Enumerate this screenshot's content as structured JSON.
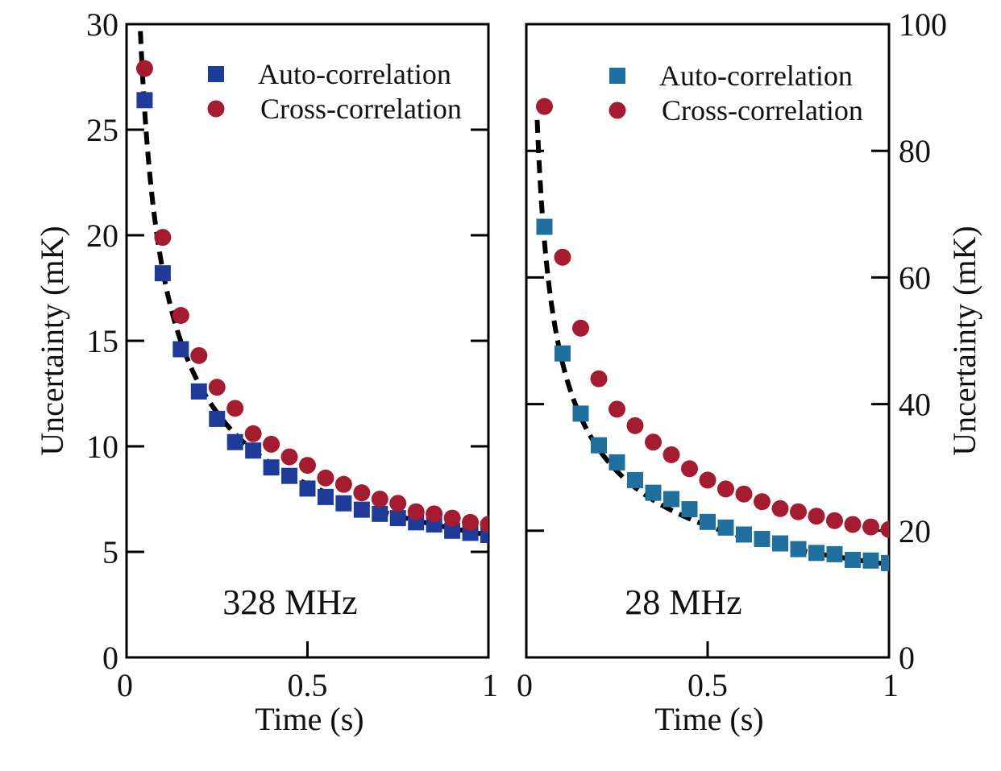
{
  "chart_data": [
    {
      "type": "scatter",
      "annotation": "328 MHz",
      "xlabel": "Time (s)",
      "ylabel": "Uncertainty (mK)",
      "xlim": [
        0,
        1
      ],
      "ylim": [
        0,
        30
      ],
      "x_ticks": [
        "0",
        "0.5",
        "1"
      ],
      "y_ticks": [
        "0",
        "5",
        "10",
        "15",
        "20",
        "25",
        "30"
      ],
      "legend_position": "top-right",
      "fit_curve": {
        "style": "dashed",
        "color": "#000000",
        "form": "a/sqrt(t)",
        "a": 5.8
      },
      "series": [
        {
          "name": "Auto-correlation",
          "marker": "square",
          "color": "#1f3b99",
          "x": [
            0.05,
            0.1,
            0.15,
            0.2,
            0.25,
            0.3,
            0.35,
            0.4,
            0.45,
            0.5,
            0.55,
            0.6,
            0.65,
            0.7,
            0.75,
            0.8,
            0.85,
            0.9,
            0.95,
            1.0
          ],
          "y": [
            26.4,
            18.2,
            14.6,
            12.6,
            11.3,
            10.2,
            9.8,
            9.0,
            8.6,
            8.0,
            7.6,
            7.3,
            7.0,
            6.8,
            6.6,
            6.4,
            6.3,
            6.0,
            5.9,
            5.8
          ]
        },
        {
          "name": "Cross-correlation",
          "marker": "circle",
          "color": "#a51c30",
          "x": [
            0.05,
            0.1,
            0.15,
            0.2,
            0.25,
            0.3,
            0.35,
            0.4,
            0.45,
            0.5,
            0.55,
            0.6,
            0.65,
            0.7,
            0.75,
            0.8,
            0.85,
            0.9,
            0.95,
            1.0
          ],
          "y": [
            27.9,
            19.9,
            16.2,
            14.3,
            12.8,
            11.8,
            10.6,
            10.1,
            9.5,
            9.1,
            8.5,
            8.2,
            7.8,
            7.5,
            7.3,
            6.9,
            6.8,
            6.6,
            6.4,
            6.3
          ]
        }
      ]
    },
    {
      "type": "scatter",
      "annotation": "28 MHz",
      "xlabel": "Time (s)",
      "ylabel": "Uncertainty (mK)",
      "xlim": [
        0,
        1
      ],
      "ylim": [
        0,
        100
      ],
      "x_ticks": [
        "0",
        "0.5",
        "1"
      ],
      "y_ticks": [
        "0",
        "20",
        "40",
        "60",
        "80",
        "100"
      ],
      "y_axis_side": "right",
      "legend_position": "top-right",
      "fit_curve": {
        "style": "dashed",
        "color": "#000000",
        "form": "a/sqrt(t)",
        "a": 14.7
      },
      "series": [
        {
          "name": "Auto-correlation",
          "marker": "square",
          "color": "#1f6f9f",
          "x": [
            0.05,
            0.1,
            0.15,
            0.2,
            0.25,
            0.3,
            0.35,
            0.4,
            0.45,
            0.5,
            0.55,
            0.6,
            0.65,
            0.7,
            0.75,
            0.8,
            0.85,
            0.9,
            0.95,
            1.0
          ],
          "y": [
            68.0,
            48.0,
            38.5,
            33.5,
            30.8,
            28.0,
            26.0,
            25.0,
            23.4,
            21.4,
            20.5,
            19.4,
            18.7,
            18.0,
            17.1,
            16.5,
            16.3,
            15.4,
            15.3,
            14.9
          ]
        },
        {
          "name": "Cross-correlation",
          "marker": "circle",
          "color": "#a51c30",
          "x": [
            0.05,
            0.1,
            0.15,
            0.2,
            0.25,
            0.3,
            0.35,
            0.4,
            0.45,
            0.5,
            0.55,
            0.6,
            0.65,
            0.7,
            0.75,
            0.8,
            0.85,
            0.9,
            0.95,
            1.0
          ],
          "y": [
            87.0,
            63.2,
            52.0,
            44.0,
            39.2,
            36.6,
            34.0,
            32.0,
            29.8,
            28.0,
            26.6,
            25.8,
            24.6,
            23.5,
            23.0,
            22.3,
            21.6,
            21.0,
            20.6,
            20.2
          ]
        }
      ]
    }
  ]
}
